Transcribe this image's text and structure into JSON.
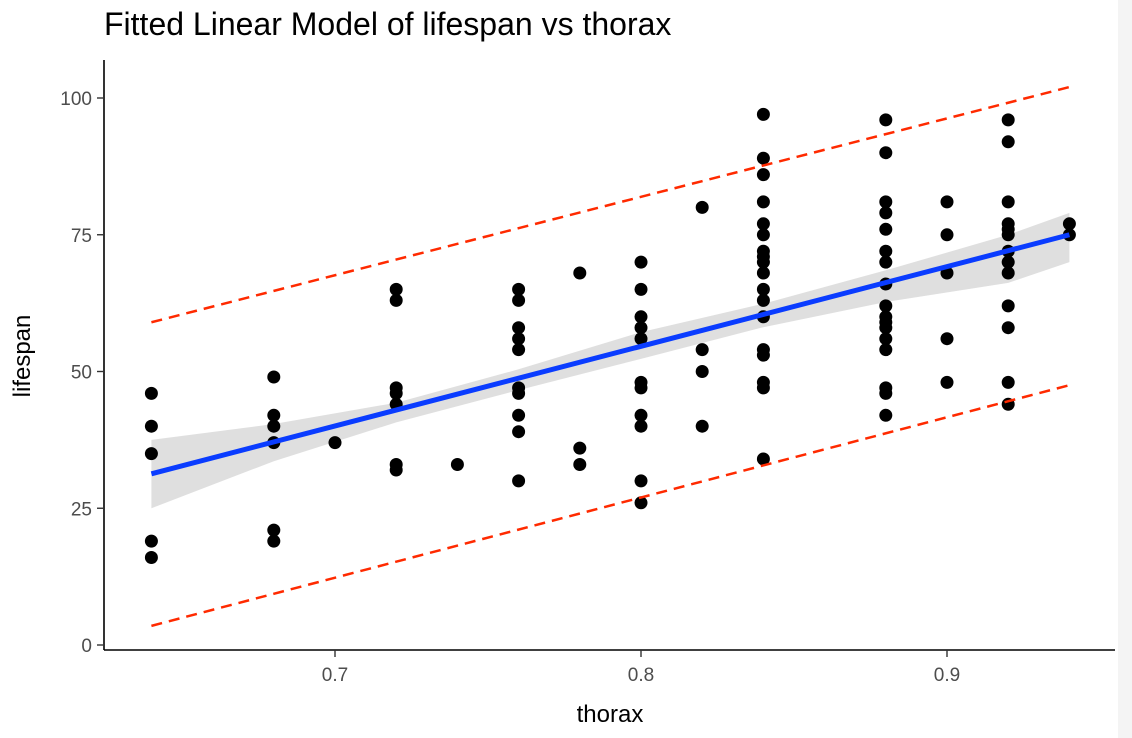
{
  "chart_data": {
    "type": "scatter",
    "title": "Fitted Linear Model of lifespan vs thorax",
    "xlabel": "thorax",
    "ylabel": "lifespan",
    "xlim": [
      0.628,
      0.943
    ],
    "ylim": [
      0,
      105
    ],
    "x_ticks": [
      0.7,
      0.8,
      0.9
    ],
    "x_tick_labels": [
      "0.7",
      "0.8",
      "0.9"
    ],
    "y_ticks": [
      0,
      25,
      50,
      75,
      100
    ],
    "y_tick_labels": [
      "0",
      "25",
      "50",
      "75",
      "100"
    ],
    "grid": false,
    "legend": "none",
    "points": [
      [
        0.64,
        46
      ],
      [
        0.64,
        40
      ],
      [
        0.64,
        35
      ],
      [
        0.64,
        19
      ],
      [
        0.64,
        16
      ],
      [
        0.68,
        49
      ],
      [
        0.68,
        42
      ],
      [
        0.68,
        40
      ],
      [
        0.68,
        37
      ],
      [
        0.68,
        21
      ],
      [
        0.68,
        19
      ],
      [
        0.7,
        37
      ],
      [
        0.72,
        65
      ],
      [
        0.72,
        63
      ],
      [
        0.72,
        47
      ],
      [
        0.72,
        46
      ],
      [
        0.72,
        44
      ],
      [
        0.72,
        33
      ],
      [
        0.72,
        32
      ],
      [
        0.74,
        33
      ],
      [
        0.76,
        65
      ],
      [
        0.76,
        63
      ],
      [
        0.76,
        58
      ],
      [
        0.76,
        56
      ],
      [
        0.76,
        54
      ],
      [
        0.76,
        47
      ],
      [
        0.76,
        46
      ],
      [
        0.76,
        42
      ],
      [
        0.76,
        39
      ],
      [
        0.76,
        30
      ],
      [
        0.78,
        68
      ],
      [
        0.78,
        36
      ],
      [
        0.78,
        33
      ],
      [
        0.8,
        70
      ],
      [
        0.8,
        65
      ],
      [
        0.8,
        60
      ],
      [
        0.8,
        58
      ],
      [
        0.8,
        56
      ],
      [
        0.8,
        48
      ],
      [
        0.8,
        47
      ],
      [
        0.8,
        42
      ],
      [
        0.8,
        40
      ],
      [
        0.8,
        30
      ],
      [
        0.8,
        26
      ],
      [
        0.82,
        80
      ],
      [
        0.82,
        54
      ],
      [
        0.82,
        50
      ],
      [
        0.82,
        40
      ],
      [
        0.84,
        97
      ],
      [
        0.84,
        89
      ],
      [
        0.84,
        86
      ],
      [
        0.84,
        81
      ],
      [
        0.84,
        77
      ],
      [
        0.84,
        75
      ],
      [
        0.84,
        72
      ],
      [
        0.84,
        71
      ],
      [
        0.84,
        70
      ],
      [
        0.84,
        68
      ],
      [
        0.84,
        65
      ],
      [
        0.84,
        63
      ],
      [
        0.84,
        60
      ],
      [
        0.84,
        54
      ],
      [
        0.84,
        53
      ],
      [
        0.84,
        48
      ],
      [
        0.84,
        47
      ],
      [
        0.84,
        34
      ],
      [
        0.88,
        96
      ],
      [
        0.88,
        90
      ],
      [
        0.88,
        81
      ],
      [
        0.88,
        79
      ],
      [
        0.88,
        76
      ],
      [
        0.88,
        72
      ],
      [
        0.88,
        70
      ],
      [
        0.88,
        66
      ],
      [
        0.88,
        62
      ],
      [
        0.88,
        60
      ],
      [
        0.88,
        59
      ],
      [
        0.88,
        58
      ],
      [
        0.88,
        56
      ],
      [
        0.88,
        54
      ],
      [
        0.88,
        47
      ],
      [
        0.88,
        46
      ],
      [
        0.88,
        42
      ],
      [
        0.9,
        81
      ],
      [
        0.9,
        75
      ],
      [
        0.9,
        68
      ],
      [
        0.9,
        56
      ],
      [
        0.9,
        48
      ],
      [
        0.92,
        96
      ],
      [
        0.92,
        92
      ],
      [
        0.92,
        81
      ],
      [
        0.92,
        77
      ],
      [
        0.92,
        76
      ],
      [
        0.92,
        75
      ],
      [
        0.92,
        72
      ],
      [
        0.92,
        70
      ],
      [
        0.92,
        68
      ],
      [
        0.92,
        62
      ],
      [
        0.92,
        58
      ],
      [
        0.92,
        48
      ],
      [
        0.92,
        44
      ],
      [
        0.94,
        77
      ],
      [
        0.94,
        75
      ]
    ],
    "point_color": "#000000",
    "fit_line": {
      "x": [
        0.64,
        0.94
      ],
      "y": [
        31.3,
        75.0
      ],
      "color": "#0a3cff"
    },
    "confidence_band": {
      "x": [
        0.64,
        0.68,
        0.72,
        0.76,
        0.8,
        0.84,
        0.88,
        0.92,
        0.94
      ],
      "upper": [
        37.5,
        40.4,
        44.3,
        50.4,
        57.2,
        62.4,
        68.5,
        75.0,
        79.0
      ],
      "lower": [
        25.0,
        33.6,
        40.7,
        46.6,
        52.3,
        58.1,
        62.7,
        66.2,
        70.0
      ],
      "color": "#d9d9d9"
    },
    "prediction_upper": {
      "x": [
        0.64,
        0.94
      ],
      "y": [
        59.0,
        102.0
      ],
      "color": "#ff2a00"
    },
    "prediction_lower": {
      "x": [
        0.64,
        0.94
      ],
      "y": [
        3.5,
        47.5
      ],
      "color": "#ff2a00"
    }
  }
}
